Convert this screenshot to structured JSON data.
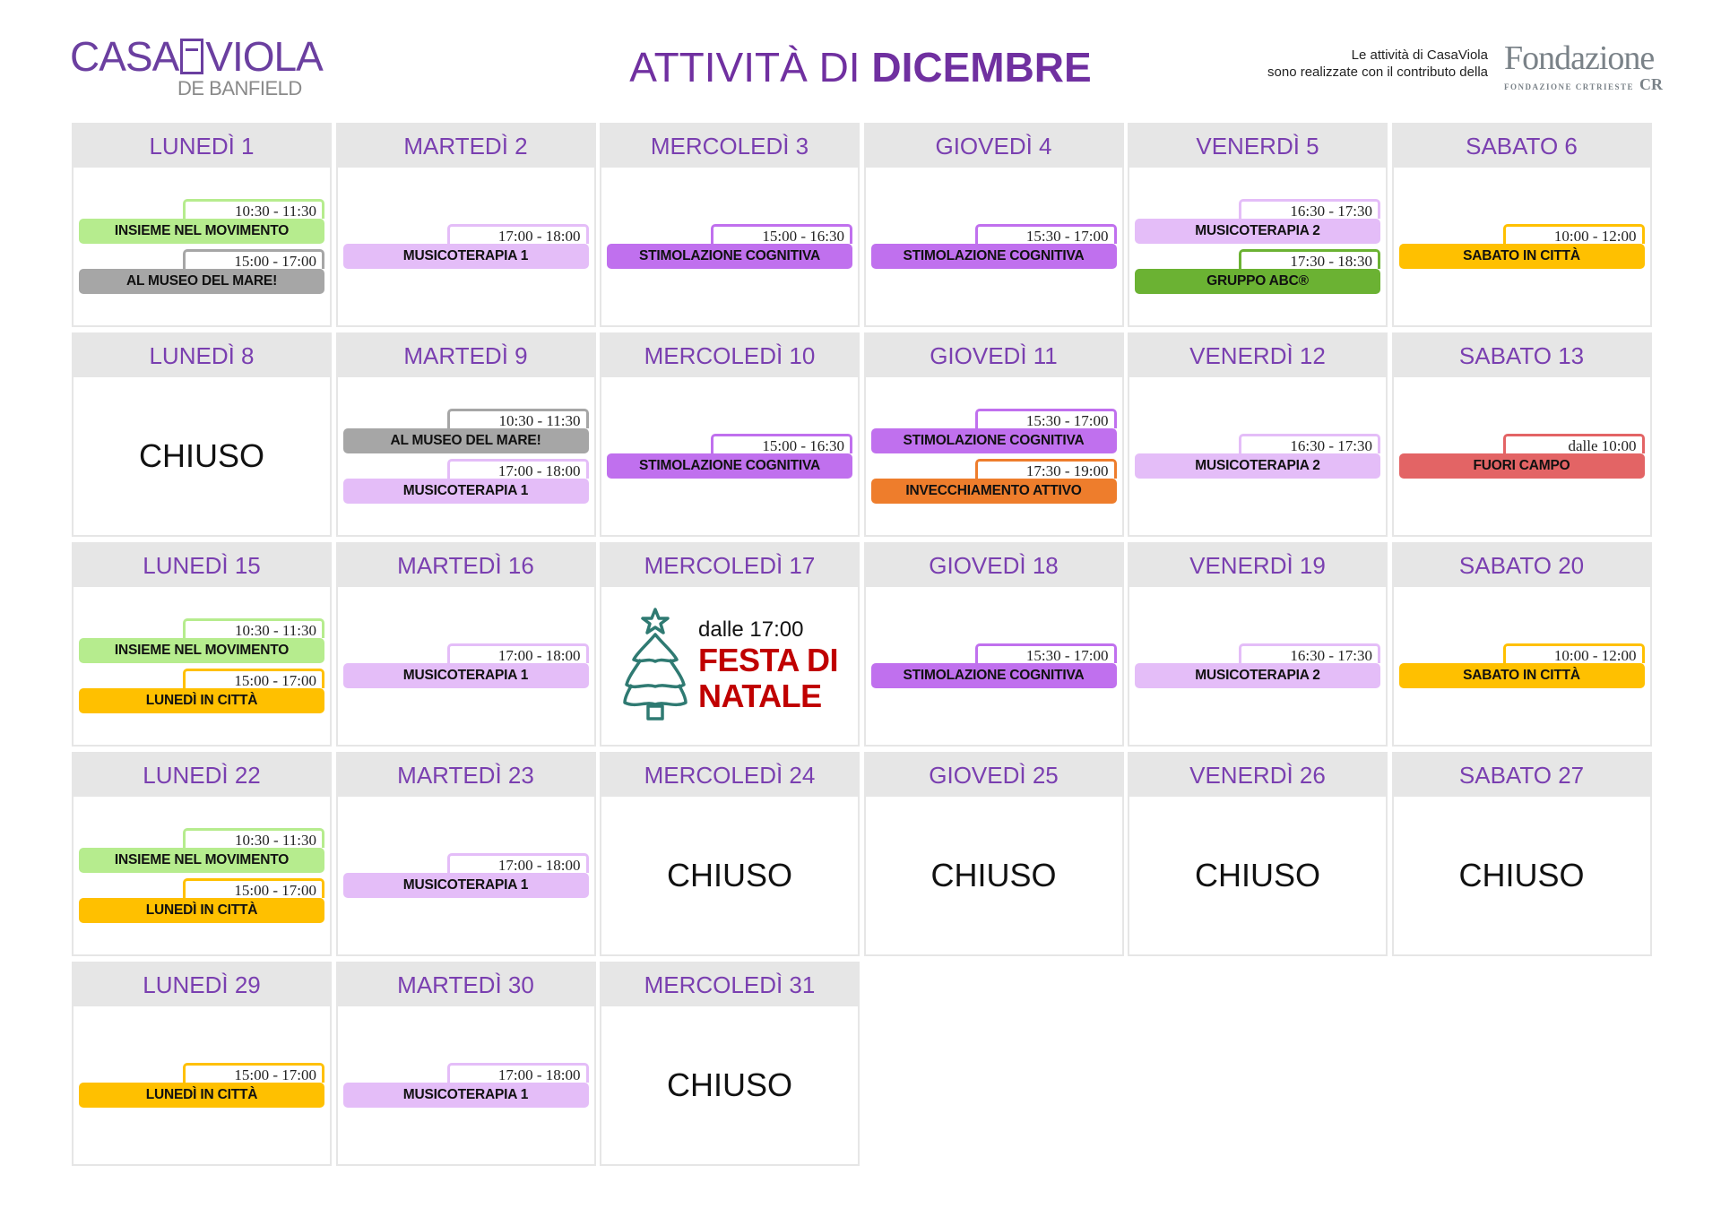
{
  "logo": {
    "main_left": "CASA",
    "main_right": "VIOLA",
    "sub": "DE BANFIELD"
  },
  "title": {
    "normal": "ATTIVITÀ DI ",
    "bold": "DICEMBRE"
  },
  "sponsor": {
    "line1": "Le attività di CasaViola",
    "line2": "sono realizzate con il contributo della",
    "logo_big": "Fondazione",
    "logo_small": "FONDAZIONE CRTRIESTE",
    "logo_mark": "CR"
  },
  "colors": {
    "header_text": "#7a3fb0",
    "light_green": "#b6ec8e",
    "gray": "#a6a6a6",
    "light_purple": "#e4bdf8",
    "purple": "#c070ee",
    "yellow": "#ffc000",
    "green": "#6bb233",
    "orange": "#ee7d2c",
    "red": "#e36465",
    "festa_red": "#c00000",
    "tree": "#2f7a72"
  },
  "weeks": [
    [
      {
        "label": "LUNEDÌ 1",
        "events": [
          {
            "time": "10:30 - 11:30",
            "name": "INSIEME NEL MOVIMENTO",
            "color": "light_green"
          },
          {
            "time": "15:00 - 17:00",
            "name": "AL MUSEO DEL MARE!",
            "color": "gray"
          }
        ]
      },
      {
        "label": "MARTEDÌ 2",
        "events": [
          {
            "time": "17:00 - 18:00",
            "name": "MUSICOTERAPIA 1",
            "color": "light_purple"
          }
        ]
      },
      {
        "label": "MERCOLEDÌ 3",
        "events": [
          {
            "time": "15:00 - 16:30",
            "name": "STIMOLAZIONE COGNITIVA",
            "color": "purple"
          }
        ]
      },
      {
        "label": "GIOVEDÌ 4",
        "events": [
          {
            "time": "15:30 - 17:00",
            "name": "STIMOLAZIONE COGNITIVA",
            "color": "purple"
          }
        ]
      },
      {
        "label": "VENERDÌ 5",
        "events": [
          {
            "time": "16:30 - 17:30",
            "name": "MUSICOTERAPIA 2",
            "color": "light_purple"
          },
          {
            "time": "17:30 - 18:30",
            "name": "GRUPPO ABC®",
            "color": "green"
          }
        ]
      },
      {
        "label": "SABATO 6",
        "events": [
          {
            "time": "10:00 - 12:00",
            "name": "SABATO IN CITTÀ",
            "color": "yellow"
          }
        ]
      }
    ],
    [
      {
        "label": "LUNEDÌ 8",
        "closed": "CHIUSO"
      },
      {
        "label": "MARTEDÌ 9",
        "events": [
          {
            "time": "10:30 - 11:30",
            "name": "AL MUSEO DEL MARE!",
            "color": "gray"
          },
          {
            "time": "17:00 - 18:00",
            "name": "MUSICOTERAPIA 1",
            "color": "light_purple"
          }
        ]
      },
      {
        "label": "MERCOLEDÌ  10",
        "events": [
          {
            "time": "15:00 - 16:30",
            "name": "STIMOLAZIONE COGNITIVA",
            "color": "purple"
          }
        ]
      },
      {
        "label": "GIOVEDÌ 11",
        "events": [
          {
            "time": "15:30 - 17:00",
            "name": "STIMOLAZIONE COGNITIVA",
            "color": "purple"
          },
          {
            "time": "17:30 - 19:00",
            "name": "INVECCHIAMENTO ATTIVO",
            "color": "orange"
          }
        ]
      },
      {
        "label": "VENERDÌ 12",
        "events": [
          {
            "time": "16:30 - 17:30",
            "name": "MUSICOTERAPIA 2",
            "color": "light_purple"
          }
        ]
      },
      {
        "label": "SABATO 13",
        "events": [
          {
            "time": "dalle 10:00",
            "name": "FUORI CAMPO",
            "color": "red"
          }
        ]
      }
    ],
    [
      {
        "label": "LUNEDÌ 15",
        "events": [
          {
            "time": "10:30 - 11:30",
            "name": "INSIEME NEL MOVIMENTO",
            "color": "light_green"
          },
          {
            "time": "15:00 - 17:00",
            "name": "LUNEDÌ IN CITTÀ",
            "color": "yellow"
          }
        ]
      },
      {
        "label": "MARTEDÌ 16",
        "events": [
          {
            "time": "17:00 - 18:00",
            "name": "MUSICOTERAPIA 1",
            "color": "light_purple"
          }
        ]
      },
      {
        "label": "MERCOLEDÌ 17",
        "special": {
          "icon": "christmas-tree-icon",
          "time": "dalle 17:00",
          "name_line1": "FESTA DI",
          "name_line2": "NATALE"
        }
      },
      {
        "label": "GIOVEDÌ 18",
        "events": [
          {
            "time": "15:30 - 17:00",
            "name": "STIMOLAZIONE COGNITIVA",
            "color": "purple"
          }
        ]
      },
      {
        "label": "VENERDÌ 19",
        "events": [
          {
            "time": "16:30 - 17:30",
            "name": "MUSICOTERAPIA 2",
            "color": "light_purple"
          }
        ]
      },
      {
        "label": "SABATO 20",
        "events": [
          {
            "time": "10:00 - 12:00",
            "name": "SABATO IN CITTÀ",
            "color": "yellow"
          }
        ]
      }
    ],
    [
      {
        "label": "LUNEDÌ 22",
        "events": [
          {
            "time": "10:30 - 11:30",
            "name": "INSIEME NEL MOVIMENTO",
            "color": "light_green"
          },
          {
            "time": "15:00 - 17:00",
            "name": "LUNEDÌ IN CITTÀ",
            "color": "yellow"
          }
        ]
      },
      {
        "label": "MARTEDÌ 23",
        "events": [
          {
            "time": "17:00 - 18:00",
            "name": "MUSICOTERAPIA 1",
            "color": "light_purple"
          }
        ]
      },
      {
        "label": "MERCOLEDÌ 24",
        "closed": "CHIUSO"
      },
      {
        "label": "GIOVEDÌ 25",
        "closed": "CHIUSO"
      },
      {
        "label": "VENERDÌ 26",
        "closed": "CHIUSO"
      },
      {
        "label": "SABATO 27",
        "closed": "CHIUSO"
      }
    ],
    [
      {
        "label": "LUNEDÌ 29",
        "events": [
          {
            "time": "15:00 - 17:00",
            "name": "LUNEDÌ IN CITTÀ",
            "color": "yellow"
          }
        ]
      },
      {
        "label": "MARTEDÌ 30",
        "events": [
          {
            "time": "17:00 - 18:00",
            "name": "MUSICOTERAPIA 1",
            "color": "light_purple"
          }
        ]
      },
      {
        "label": "MERCOLEDÌ 31",
        "closed": "CHIUSO"
      }
    ]
  ]
}
